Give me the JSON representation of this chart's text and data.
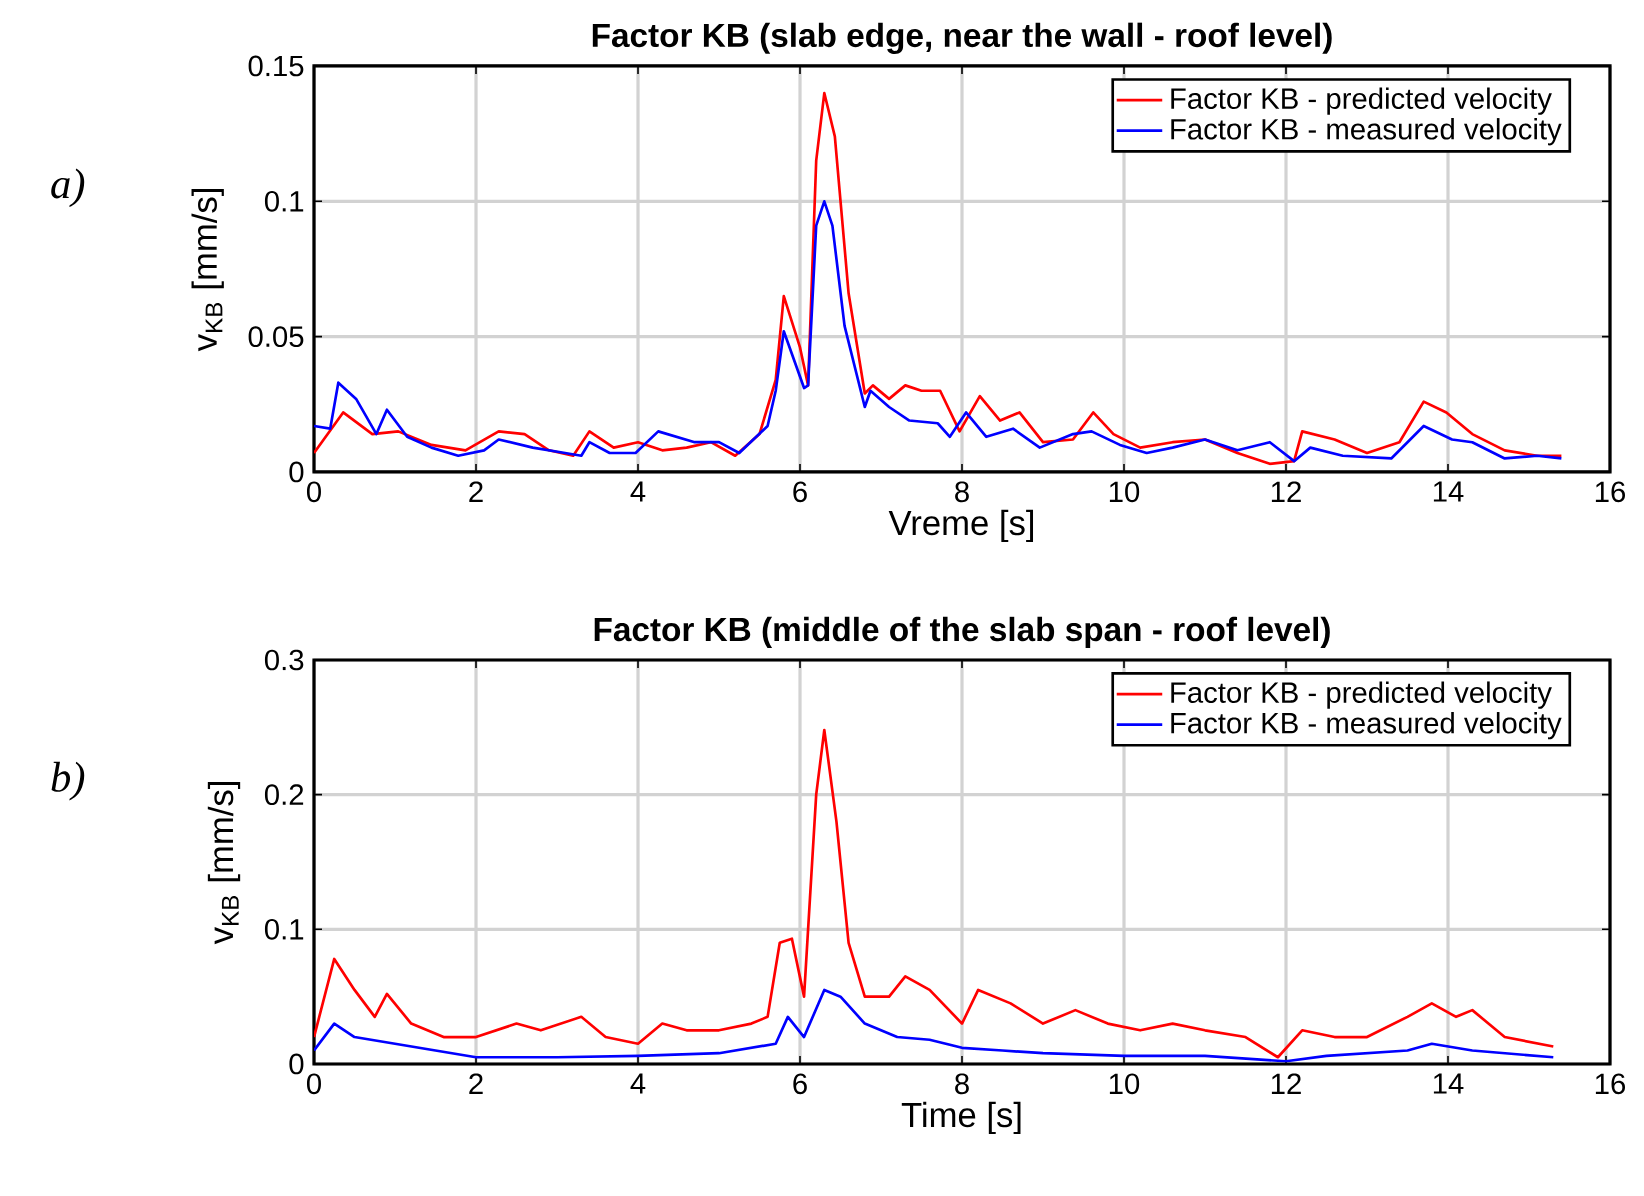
{
  "chart_data": [
    {
      "type": "line",
      "title": "Factor KB (slab edge, near the wall - roof level)",
      "xlabel": "Vreme [s]",
      "ylabel": "v$_{KB}$ [mm/s]",
      "annotations": [
        "a)"
      ],
      "xlim": [
        0,
        16
      ],
      "ylim": [
        0,
        0.15
      ],
      "xticks": [
        0,
        2,
        4,
        6,
        8,
        10,
        12,
        14,
        16
      ],
      "yticks": [
        0,
        0.05,
        0.1,
        0.15
      ],
      "grid": true,
      "legend": "top right",
      "series": [
        {
          "name": "Factor KB - predicted velocity",
          "color": "#ff0000",
          "x": [
            0,
            0.36,
            0.72,
            1.04,
            1.45,
            1.87,
            2.28,
            2.6,
            2.9,
            3.2,
            3.4,
            3.7,
            4.0,
            4.3,
            4.6,
            4.9,
            5.2,
            5.5,
            5.7,
            5.8,
            6.0,
            6.1,
            6.2,
            6.3,
            6.43,
            6.6,
            6.8,
            6.9,
            7.1,
            7.3,
            7.5,
            7.73,
            7.97,
            8.22,
            8.47,
            8.71,
            9.0,
            9.37,
            9.62,
            9.87,
            10.2,
            10.6,
            11.0,
            11.4,
            11.8,
            12.1,
            12.2,
            12.6,
            13.0,
            13.4,
            13.7,
            13.98,
            14.3,
            14.7,
            15.1,
            15.4
          ],
          "values": [
            0.007,
            0.022,
            0.014,
            0.015,
            0.01,
            0.008,
            0.015,
            0.014,
            0.008,
            0.006,
            0.015,
            0.009,
            0.011,
            0.008,
            0.009,
            0.011,
            0.006,
            0.014,
            0.034,
            0.065,
            0.046,
            0.032,
            0.115,
            0.14,
            0.124,
            0.066,
            0.029,
            0.032,
            0.027,
            0.032,
            0.03,
            0.03,
            0.015,
            0.028,
            0.019,
            0.022,
            0.011,
            0.012,
            0.022,
            0.014,
            0.009,
            0.011,
            0.012,
            0.007,
            0.003,
            0.004,
            0.015,
            0.012,
            0.007,
            0.011,
            0.026,
            0.022,
            0.014,
            0.008,
            0.006,
            0.006
          ]
        },
        {
          "name": "Factor KB - measured velocity",
          "color": "#0000ff",
          "x": [
            0,
            0.2,
            0.3,
            0.52,
            0.77,
            0.9,
            1.15,
            1.45,
            1.78,
            2.1,
            2.28,
            2.7,
            3.1,
            3.3,
            3.4,
            3.65,
            3.97,
            4.25,
            4.7,
            5.0,
            5.25,
            5.6,
            5.7,
            5.8,
            6.05,
            6.1,
            6.2,
            6.3,
            6.4,
            6.55,
            6.8,
            6.87,
            7.1,
            7.35,
            7.7,
            7.85,
            8.05,
            8.3,
            8.63,
            8.96,
            9.37,
            9.6,
            9.95,
            10.28,
            10.6,
            11.0,
            11.4,
            11.8,
            12.1,
            12.3,
            12.7,
            13.3,
            13.7,
            14.05,
            14.3,
            14.7,
            15.1,
            15.4
          ],
          "values": [
            0.017,
            0.016,
            0.033,
            0.027,
            0.014,
            0.023,
            0.013,
            0.009,
            0.006,
            0.008,
            0.012,
            0.009,
            0.007,
            0.006,
            0.011,
            0.007,
            0.007,
            0.015,
            0.011,
            0.011,
            0.007,
            0.017,
            0.03,
            0.052,
            0.031,
            0.032,
            0.091,
            0.1,
            0.091,
            0.054,
            0.024,
            0.03,
            0.024,
            0.019,
            0.018,
            0.013,
            0.022,
            0.013,
            0.016,
            0.009,
            0.014,
            0.015,
            0.01,
            0.007,
            0.009,
            0.012,
            0.008,
            0.011,
            0.004,
            0.009,
            0.006,
            0.005,
            0.017,
            0.012,
            0.011,
            0.005,
            0.006,
            0.005
          ]
        }
      ]
    },
    {
      "type": "line",
      "title": "Factor KB (middle of the slab span - roof level)",
      "xlabel": "Time [s]",
      "ylabel": "v$_{KB}$ [mm/s]",
      "annotations": [
        "b)"
      ],
      "xlim": [
        0,
        16
      ],
      "ylim": [
        0,
        0.3
      ],
      "xticks": [
        0,
        2,
        4,
        6,
        8,
        10,
        12,
        14,
        16
      ],
      "yticks": [
        0,
        0.1,
        0.2,
        0.3
      ],
      "grid": true,
      "legend": "top right",
      "series": [
        {
          "name": "Factor KB - predicted velocity",
          "color": "#ff0000",
          "x": [
            0,
            0.25,
            0.5,
            0.75,
            0.9,
            1.2,
            1.6,
            2.0,
            2.5,
            2.8,
            3.3,
            3.6,
            4.0,
            4.3,
            4.6,
            5.0,
            5.4,
            5.6,
            5.75,
            5.9,
            6.05,
            6.2,
            6.3,
            6.45,
            6.6,
            6.8,
            7.1,
            7.3,
            7.6,
            8.0,
            8.2,
            8.6,
            9.0,
            9.4,
            9.8,
            10.2,
            10.6,
            11.0,
            11.5,
            11.9,
            12.2,
            12.6,
            13.0,
            13.5,
            13.8,
            14.1,
            14.3,
            14.7,
            15.3
          ],
          "values": [
            0.02,
            0.078,
            0.055,
            0.035,
            0.052,
            0.03,
            0.02,
            0.02,
            0.03,
            0.025,
            0.035,
            0.02,
            0.015,
            0.03,
            0.025,
            0.025,
            0.03,
            0.035,
            0.09,
            0.093,
            0.05,
            0.2,
            0.248,
            0.18,
            0.09,
            0.05,
            0.05,
            0.065,
            0.055,
            0.03,
            0.055,
            0.045,
            0.03,
            0.04,
            0.03,
            0.025,
            0.03,
            0.025,
            0.02,
            0.005,
            0.025,
            0.02,
            0.02,
            0.035,
            0.045,
            0.035,
            0.04,
            0.02,
            0.013
          ]
        },
        {
          "name": "Factor KB - measured velocity",
          "color": "#0000ff",
          "x": [
            0,
            0.25,
            0.5,
            1.0,
            1.5,
            2.0,
            3.0,
            4.0,
            5.0,
            5.7,
            5.85,
            6.05,
            6.3,
            6.5,
            6.8,
            7.2,
            7.6,
            8.0,
            8.5,
            9.0,
            10.0,
            11.0,
            12.0,
            12.5,
            13.5,
            13.8,
            14.3,
            15.3
          ],
          "values": [
            0.01,
            0.03,
            0.02,
            0.015,
            0.01,
            0.005,
            0.005,
            0.006,
            0.008,
            0.015,
            0.035,
            0.02,
            0.055,
            0.05,
            0.03,
            0.02,
            0.018,
            0.012,
            0.01,
            0.008,
            0.006,
            0.006,
            0.002,
            0.006,
            0.01,
            0.015,
            0.01,
            0.005
          ]
        }
      ]
    }
  ]
}
